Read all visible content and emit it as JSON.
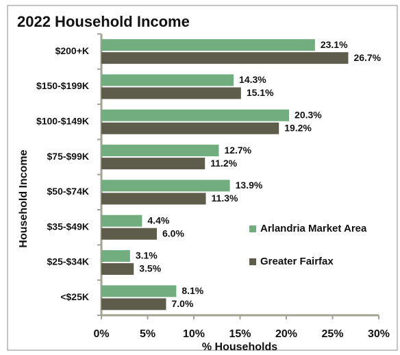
{
  "chart_data": {
    "type": "bar",
    "orientation": "horizontal",
    "title": "2022 Household Income",
    "x_label": "% Households",
    "y_label": "Household Income",
    "categories": [
      "$200+K",
      "$150-$199K",
      "$100-$149K",
      "$75-$99K",
      "$50-$74K",
      "$35-$49K",
      "$25-$34K",
      "<$25K"
    ],
    "series": [
      {
        "name": "Arlandria Market Area",
        "color": "#72ad7f",
        "values": [
          23.1,
          14.3,
          20.3,
          12.7,
          13.9,
          4.4,
          3.1,
          8.1
        ],
        "value_labels": [
          "23.1%",
          "14.3%",
          "20.3%",
          "12.7%",
          "13.9%",
          "4.4%",
          "3.1%",
          "8.1%"
        ]
      },
      {
        "name": "Greater Fairfax",
        "color": "#5e5d4c",
        "values": [
          26.7,
          15.1,
          19.2,
          11.2,
          11.3,
          6.0,
          3.5,
          7.0
        ],
        "value_labels": [
          "26.7%",
          "15.1%",
          "19.2%",
          "11.2%",
          "11.3%",
          "6.0%",
          "3.5%",
          "7.0%"
        ]
      }
    ],
    "xlim": [
      0,
      30
    ],
    "xticks": [
      {
        "value": 0,
        "label": "0%"
      },
      {
        "value": 5,
        "label": "5%"
      },
      {
        "value": 10,
        "label": "10%"
      },
      {
        "value": 15,
        "label": "15%"
      },
      {
        "value": 20,
        "label": "20%"
      },
      {
        "value": 25,
        "label": "25%"
      },
      {
        "value": 30,
        "label": "30%"
      }
    ]
  }
}
